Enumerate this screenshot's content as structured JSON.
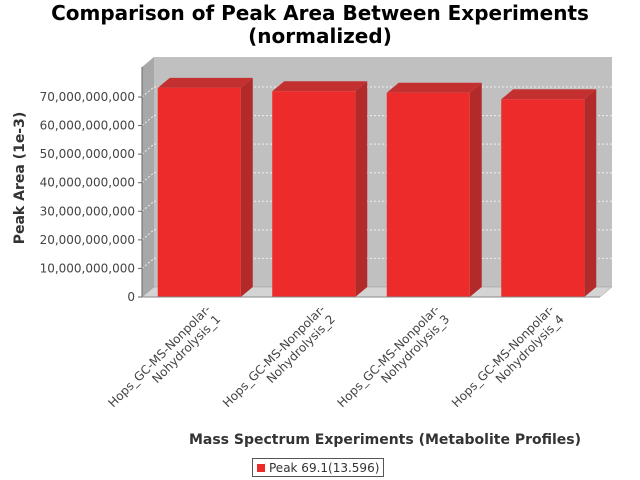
{
  "chart_data": {
    "type": "bar",
    "title_line1": "Comparison of Peak Area Between Experiments",
    "title_line2": "(normalized)",
    "xlabel": "Mass Spectrum Experiments (Metabolite Profiles)",
    "ylabel": "Peak Area (1e-3)",
    "categories": [
      [
        "Hops_GC-MS-Nonpolar-",
        "Nohydrolysis_1"
      ],
      [
        "Hops_GC-MS-Nonpolar-",
        "Nohydrolysis_2"
      ],
      [
        "Hops_GC-MS-Nonpolar-",
        "Nohydrolysis_3"
      ],
      [
        "Hops_GC-MS-Nonpolar-",
        "Nohydrolysis_4"
      ]
    ],
    "series": [
      {
        "name": "Peak 69.1(13.596)",
        "color": "#ee2b2b",
        "values": [
          73200000000,
          72000000000,
          71500000000,
          69200000000
        ]
      }
    ],
    "ylim": [
      0,
      70000000000
    ],
    "yticks": [
      0,
      10000000000,
      20000000000,
      30000000000,
      40000000000,
      50000000000,
      60000000000,
      70000000000
    ],
    "ytick_labels": [
      "0",
      "10,000,000,000",
      "20,000,000,000",
      "30,000,000,000",
      "40,000,000,000",
      "50,000,000,000",
      "60,000,000,000",
      "70,000,000,000"
    ],
    "grid": true,
    "legend_position": "bottom",
    "plot_background": "#c0c0c0"
  }
}
